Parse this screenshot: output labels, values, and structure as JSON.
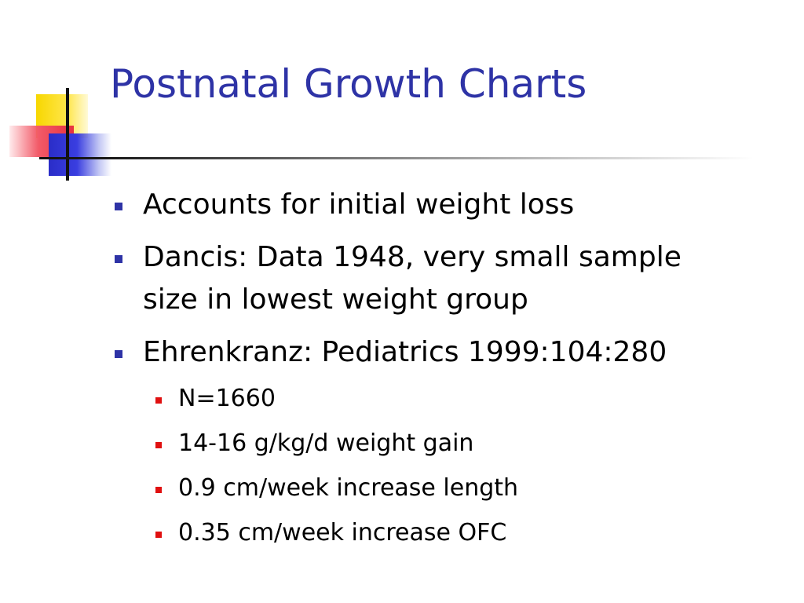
{
  "slide": {
    "title": "Postnatal Growth Charts",
    "colors": {
      "title": "#2e33a6",
      "bullet_level1": "#2e33a6",
      "bullet_level2": "#e01010",
      "text": "#000000"
    },
    "bullets": [
      {
        "lines": [
          "Accounts for initial weight loss"
        ]
      },
      {
        "lines": [
          "Dancis: Data 1948, very small sample",
          "size in lowest weight group"
        ]
      },
      {
        "lines": [
          "Ehrenkranz: Pediatrics 1999:104:280"
        ],
        "sub": [
          "N=1660",
          "14-16 g/kg/d weight gain",
          "0.9 cm/week increase length",
          "0.35 cm/week increase OFC"
        ]
      }
    ]
  }
}
